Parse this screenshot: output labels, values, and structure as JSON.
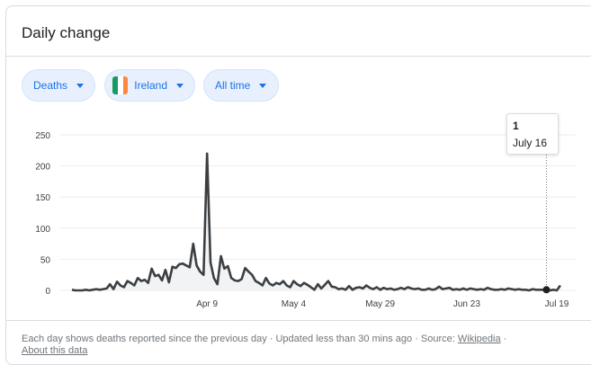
{
  "card": {
    "title": "Daily change"
  },
  "filters": {
    "metric": "Deaths",
    "country": "Ireland",
    "time_range": "All time"
  },
  "flag_colors": [
    "#169b62",
    "#ffffff",
    "#ff883e"
  ],
  "colors": {
    "chip_text": "#1a73e8",
    "chip_bg": "#e8f0fe",
    "line": "#3c4043"
  },
  "tooltip": {
    "value": "1",
    "date": "July 16"
  },
  "footer": {
    "text": "Each day shows deaths reported since the previous day · Updated less than 30 mins ago ·  Source: ",
    "source_link": "Wikipedia",
    "separator": " · ",
    "about_link": "About this data"
  },
  "chart_data": {
    "type": "area",
    "title": "",
    "xlabel": "",
    "ylabel": "",
    "ylim": [
      0,
      250
    ],
    "yticks": [
      0,
      50,
      100,
      150,
      200,
      250
    ],
    "x_tick_labels": [
      "Apr 9",
      "May 4",
      "May 29",
      "Jun 23",
      "Jul 19"
    ],
    "x_tick_days": [
      39,
      64,
      89,
      114,
      140
    ],
    "highlight": {
      "day": 137,
      "value": 1,
      "label": "July 16"
    },
    "grid": true,
    "legend": "none",
    "x_days": [
      0,
      1,
      2,
      3,
      4,
      5,
      6,
      7,
      8,
      9,
      10,
      11,
      12,
      13,
      14,
      15,
      16,
      17,
      18,
      19,
      20,
      21,
      22,
      23,
      24,
      25,
      26,
      27,
      28,
      29,
      30,
      31,
      32,
      33,
      34,
      35,
      36,
      37,
      38,
      39,
      40,
      41,
      42,
      43,
      44,
      45,
      46,
      47,
      48,
      49,
      50,
      51,
      52,
      53,
      54,
      55,
      56,
      57,
      58,
      59,
      60,
      61,
      62,
      63,
      64,
      65,
      66,
      67,
      68,
      69,
      70,
      71,
      72,
      73,
      74,
      75,
      76,
      77,
      78,
      79,
      80,
      81,
      82,
      83,
      84,
      85,
      86,
      87,
      88,
      89,
      90,
      91,
      92,
      93,
      94,
      95,
      96,
      97,
      98,
      99,
      100,
      101,
      102,
      103,
      104,
      105,
      106,
      107,
      108,
      109,
      110,
      111,
      112,
      113,
      114,
      115,
      116,
      117,
      118,
      119,
      120,
      121,
      122,
      123,
      124,
      125,
      126,
      127,
      128,
      129,
      130,
      131,
      132,
      133,
      134,
      135,
      136,
      137,
      138,
      139,
      140,
      141
    ],
    "values": [
      1,
      0,
      0,
      0,
      1,
      0,
      1,
      2,
      1,
      2,
      3,
      10,
      2,
      14,
      8,
      5,
      15,
      12,
      8,
      20,
      15,
      17,
      12,
      35,
      23,
      25,
      16,
      33,
      13,
      38,
      36,
      42,
      43,
      40,
      37,
      75,
      40,
      30,
      25,
      220,
      45,
      20,
      10,
      55,
      35,
      39,
      20,
      16,
      15,
      18,
      36,
      30,
      25,
      15,
      12,
      8,
      20,
      11,
      8,
      12,
      10,
      15,
      8,
      5,
      15,
      10,
      7,
      12,
      9,
      5,
      1,
      10,
      3,
      9,
      15,
      6,
      5,
      2,
      3,
      1,
      7,
      1,
      4,
      5,
      3,
      8,
      4,
      2,
      5,
      1,
      4,
      2,
      3,
      1,
      2,
      4,
      2,
      5,
      3,
      2,
      3,
      1,
      1,
      3,
      1,
      2,
      6,
      2,
      3,
      4,
      1,
      2,
      1,
      3,
      1,
      3,
      2,
      1,
      2,
      1,
      4,
      2,
      1,
      1,
      2,
      1,
      3,
      2,
      1,
      2,
      1,
      1,
      0,
      2,
      1,
      1,
      1,
      1,
      0,
      1,
      0,
      8
    ]
  }
}
